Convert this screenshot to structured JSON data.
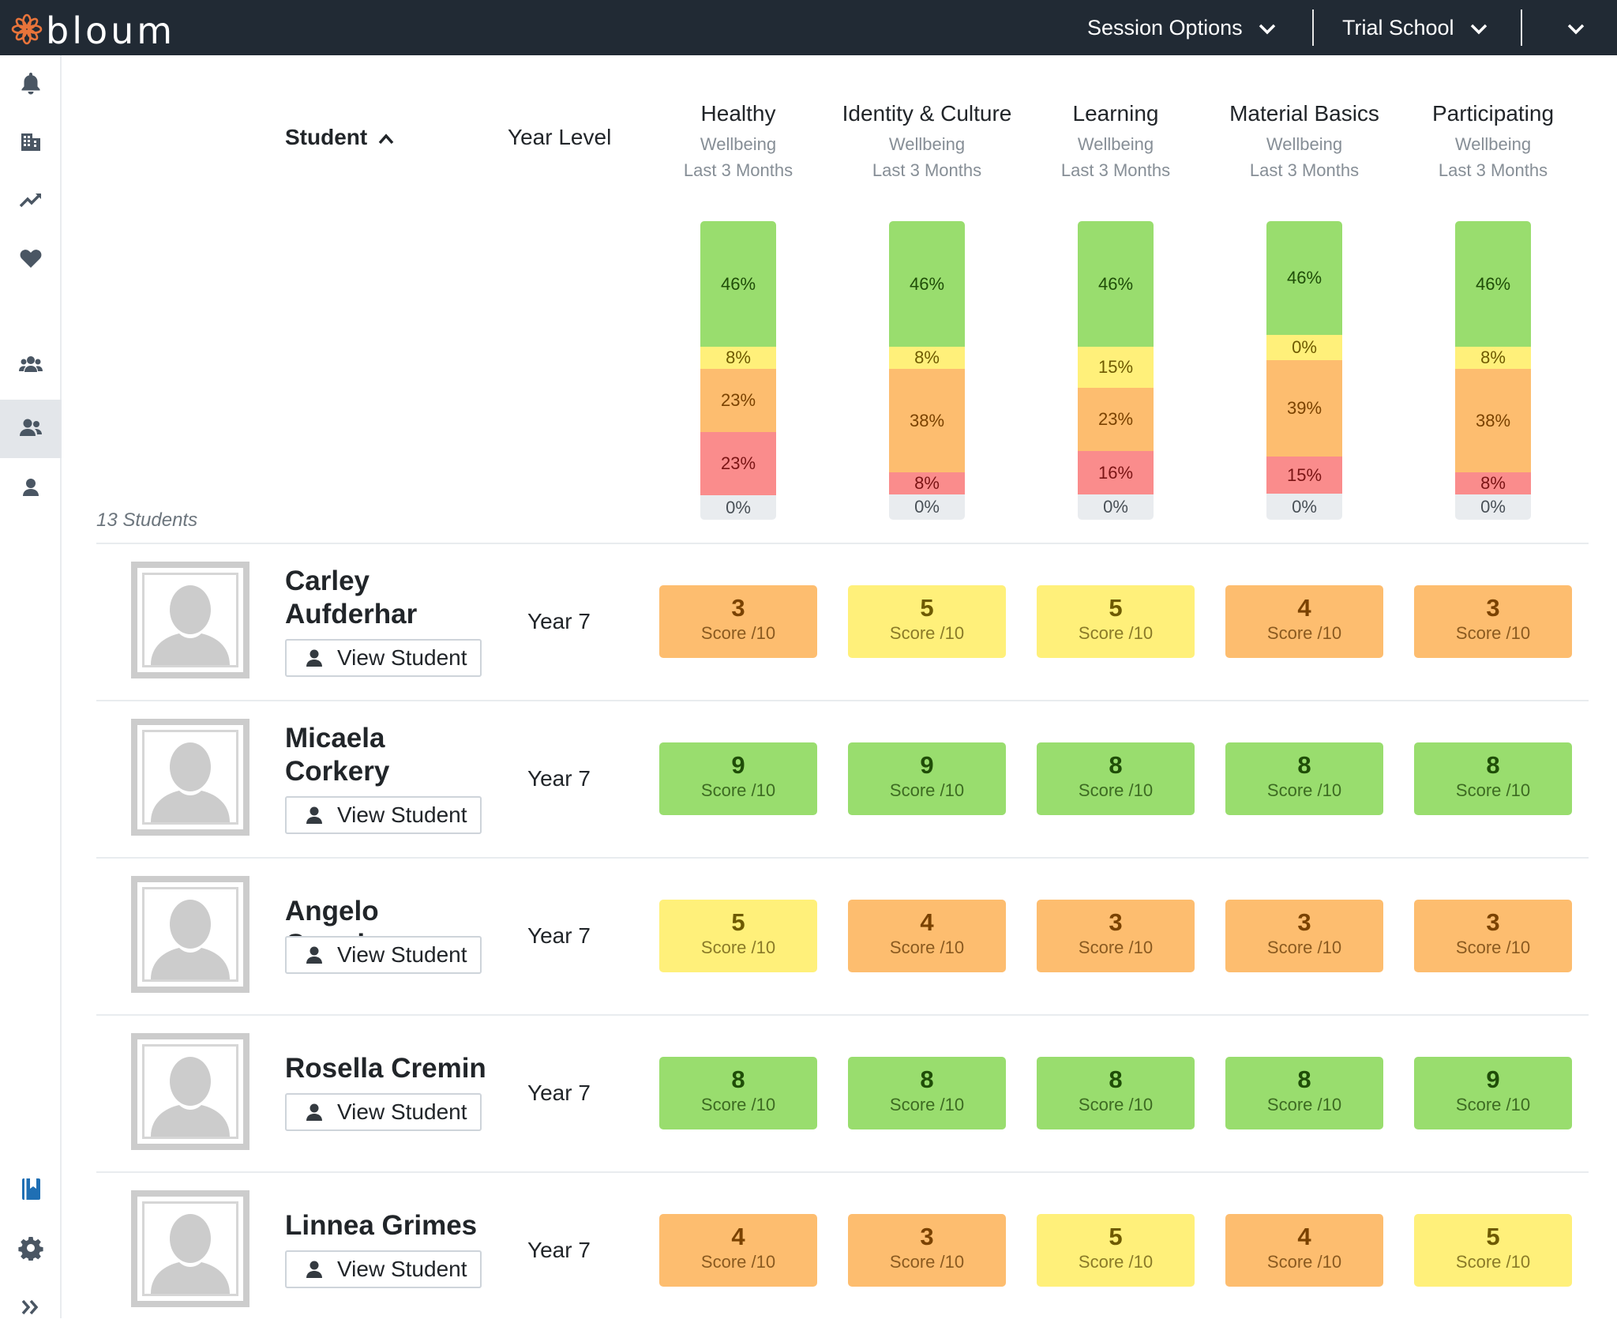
{
  "app": {
    "logo_text": "bloum"
  },
  "topbar": {
    "session_options": "Session Options",
    "school": "Trial School"
  },
  "sidebar": {
    "items": [
      {
        "name": "notifications",
        "icon": "bell-icon"
      },
      {
        "name": "school",
        "icon": "building-icon"
      },
      {
        "name": "trends",
        "icon": "chart-line-icon"
      },
      {
        "name": "wellbeing",
        "icon": "heart-icon"
      },
      {
        "name": "groups",
        "icon": "users-icon"
      },
      {
        "name": "students",
        "icon": "user-friends-icon",
        "active": true
      },
      {
        "name": "profile",
        "icon": "user-icon"
      },
      {
        "name": "resources",
        "icon": "book-icon"
      },
      {
        "name": "settings",
        "icon": "gear-icon"
      },
      {
        "name": "expand",
        "icon": "double-chevron-right-icon"
      }
    ]
  },
  "table": {
    "student_header": "Student",
    "year_header": "Year Level",
    "student_count": "13 Students",
    "domains": [
      {
        "title": "Healthy",
        "sub1": "Wellbeing",
        "sub2": "Last 3 Months",
        "dist": [
          {
            "label": "46%",
            "v": 46
          },
          {
            "label": "8%",
            "v": 8
          },
          {
            "label": "23%",
            "v": 23
          },
          {
            "label": "23%",
            "v": 23
          },
          {
            "label": "0%",
            "v": 0
          }
        ]
      },
      {
        "title": "Identity & Culture",
        "sub1": "Wellbeing",
        "sub2": "Last 3 Months",
        "dist": [
          {
            "label": "46%",
            "v": 46
          },
          {
            "label": "8%",
            "v": 8
          },
          {
            "label": "38%",
            "v": 38
          },
          {
            "label": "8%",
            "v": 8
          },
          {
            "label": "0%",
            "v": 0
          }
        ]
      },
      {
        "title": "Learning",
        "sub1": "Wellbeing",
        "sub2": "Last 3 Months",
        "dist": [
          {
            "label": "46%",
            "v": 46
          },
          {
            "label": "15%",
            "v": 15
          },
          {
            "label": "23%",
            "v": 23
          },
          {
            "label": "16%",
            "v": 16
          },
          {
            "label": "0%",
            "v": 0
          }
        ]
      },
      {
        "title": "Material Basics",
        "sub1": "Wellbeing",
        "sub2": "Last 3 Months",
        "dist": [
          {
            "label": "46%",
            "v": 46
          },
          {
            "label": "0%",
            "v": 0
          },
          {
            "label": "39%",
            "v": 39
          },
          {
            "label": "15%",
            "v": 15
          },
          {
            "label": "0%",
            "v": 0
          }
        ]
      },
      {
        "title": "Participating",
        "sub1": "Wellbeing",
        "sub2": "Last 3 Months",
        "dist": [
          {
            "label": "46%",
            "v": 46
          },
          {
            "label": "8%",
            "v": 8
          },
          {
            "label": "38%",
            "v": 38
          },
          {
            "label": "8%",
            "v": 8
          },
          {
            "label": "0%",
            "v": 0
          }
        ]
      }
    ],
    "score_label": "Score /10",
    "view_label": "View Student",
    "students": [
      {
        "name": "Carley Aufderhar",
        "year": "Year 7",
        "scores": [
          3,
          5,
          5,
          4,
          3
        ]
      },
      {
        "name": "Micaela Corkery",
        "year": "Year 7",
        "scores": [
          9,
          9,
          8,
          8,
          8
        ]
      },
      {
        "name": "Angelo Cormier",
        "year": "Year 7",
        "scores": [
          5,
          4,
          3,
          3,
          3
        ]
      },
      {
        "name": "Rosella Cremin",
        "year": "Year 7",
        "scores": [
          8,
          8,
          8,
          8,
          9
        ]
      },
      {
        "name": "Linnea Grimes",
        "year": "Year 7",
        "scores": [
          4,
          3,
          5,
          4,
          5
        ]
      }
    ]
  },
  "colors": {
    "topbar": "#212a34",
    "accent_logo": "#e8743b",
    "green": "#99dd6e",
    "yellow": "#fff07a",
    "orange": "#fdbd6f",
    "red": "#fa8c8c",
    "grey": "#e9ecef"
  }
}
